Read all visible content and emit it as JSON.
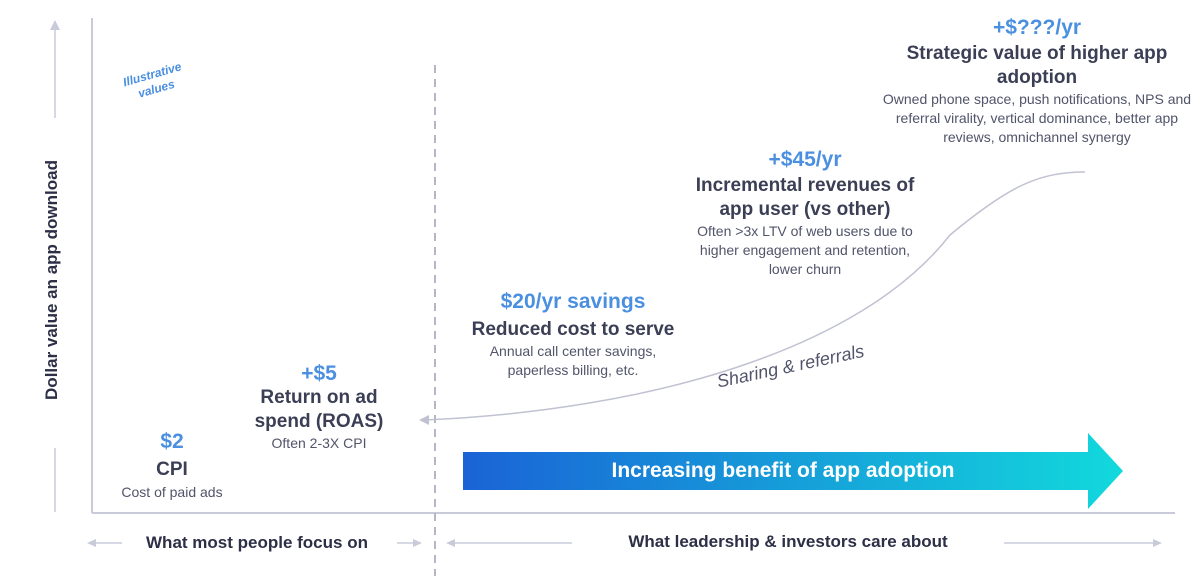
{
  "y_axis_label": "Dollar value an app download",
  "illustrative_note": "Illustrative values",
  "stages": [
    {
      "value": "$2",
      "title": "CPI",
      "subtitle": "Cost of paid ads"
    },
    {
      "value": "+$5",
      "title": "Return on ad spend (ROAS)",
      "subtitle": "Often 2-3X CPI"
    },
    {
      "value": "$20/yr savings",
      "title": "Reduced cost to serve",
      "subtitle": "Annual call center savings, paperless billing, etc."
    },
    {
      "value": "+$45/yr",
      "title": "Incremental revenues of app user (vs other)",
      "subtitle": "Often >3x LTV of web users due to higher engagement and retention, lower churn"
    },
    {
      "value": "+$???/yr",
      "title": "Strategic value of higher app adoption",
      "subtitle": "Owned phone space, push notifications, NPS and referral virality, vertical dominance, better app reviews, omnichannel synergy"
    }
  ],
  "curve_label": "Sharing & referrals",
  "banner_label": "Increasing benefit of app adoption",
  "x_left_label": "What most people focus on",
  "x_right_label": "What leadership & investors care about",
  "colors": {
    "accent_blue": "#4a8fe0",
    "banner_start": "#1a63d6",
    "banner_end": "#12d9dc",
    "axis": "#c9cbda",
    "text_dark": "#3b3f55"
  }
}
